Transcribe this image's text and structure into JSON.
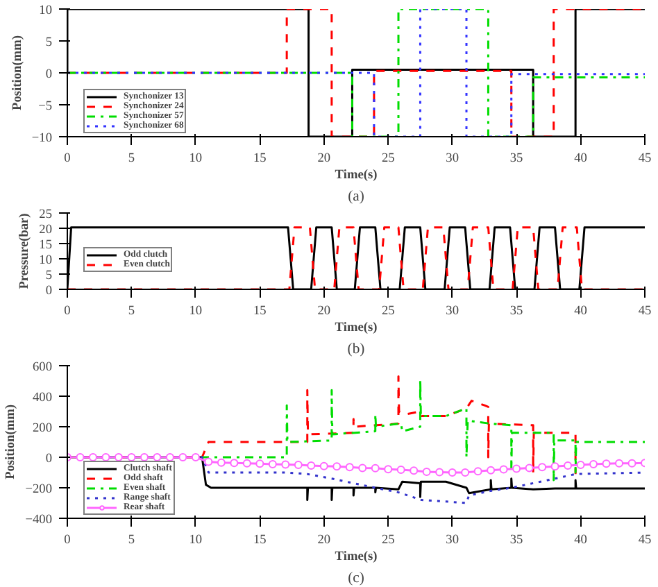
{
  "chart_data": [
    {
      "type": "line",
      "xlabel": "Time(s)",
      "ylabel": "Position(mm)",
      "annotations": [
        "(a)"
      ],
      "xlim": [
        0,
        45
      ],
      "xticks": [
        0,
        5,
        10,
        15,
        20,
        25,
        30,
        35,
        40,
        45
      ],
      "ylim": [
        -10,
        10
      ],
      "yticks": [
        -10,
        -5,
        0,
        5,
        10
      ],
      "grid": false,
      "legend": "bottom left",
      "series": [
        {
          "name": "Synchonizer 13",
          "color": "#000000",
          "line_style": "solid",
          "x": [
            0,
            0,
            18.8,
            18.8,
            22.2,
            22.2,
            36.3,
            36.3,
            39.6,
            39.6,
            45
          ],
          "values": [
            0,
            10,
            10,
            -10,
            -10,
            0.5,
            0.5,
            -10,
            -10,
            10,
            10
          ]
        },
        {
          "name": "Synchonizer 24",
          "color": "#ff0000",
          "line_style": "dashed",
          "x": [
            0,
            17.1,
            17.1,
            20.6,
            20.6,
            23.9,
            23.9,
            34.6,
            34.6,
            37.9,
            37.9,
            45
          ],
          "values": [
            0,
            0,
            10,
            10,
            -10,
            -10,
            0.3,
            0.3,
            -10,
            -10,
            10,
            10
          ]
        },
        {
          "name": "Synchonizer 57",
          "color": "#00dd00",
          "line_style": "dashdot",
          "x": [
            0,
            22.2,
            22.2,
            25.8,
            25.8,
            32.8,
            32.8,
            36.3,
            36.3,
            45
          ],
          "values": [
            0,
            0,
            -10,
            -10,
            10,
            10,
            -10,
            -10,
            -0.7,
            -0.7
          ]
        },
        {
          "name": "Synchonizer 68",
          "color": "#3333ff",
          "line_style": "dotted",
          "x": [
            0,
            23.9,
            23.9,
            27.5,
            27.5,
            31.1,
            31.1,
            34.6,
            34.6,
            45
          ],
          "values": [
            0,
            0,
            -10,
            -10,
            10,
            10,
            -10,
            -10,
            -0.2,
            -0.2
          ]
        }
      ]
    },
    {
      "type": "line",
      "xlabel": "Time(s)",
      "ylabel": "Pressure(bar)",
      "annotations": [
        "(b)"
      ],
      "xlim": [
        0,
        45
      ],
      "xticks": [
        0,
        5,
        10,
        15,
        20,
        25,
        30,
        35,
        40,
        45
      ],
      "ylim": [
        0,
        25
      ],
      "yticks": [
        0,
        5,
        10,
        15,
        20,
        25
      ],
      "grid": false,
      "legend": "bottom left",
      "series": [
        {
          "name": "Odd clutch",
          "color": "#000000",
          "line_style": "solid",
          "x": [
            0,
            0.3,
            17.2,
            17.6,
            19.0,
            19.4,
            20.6,
            21.0,
            22.4,
            22.8,
            24.0,
            24.4,
            25.9,
            26.3,
            27.5,
            27.9,
            29.4,
            29.8,
            31.0,
            31.4,
            32.9,
            33.3,
            34.5,
            34.9,
            36.4,
            36.8,
            38.0,
            38.4,
            39.9,
            40.3,
            45
          ],
          "values": [
            0,
            20.3,
            20.3,
            0,
            0,
            20.3,
            20.3,
            0,
            0,
            20.3,
            20.3,
            0,
            0,
            20.3,
            20.3,
            0,
            0,
            20.3,
            20.3,
            0,
            0,
            20.3,
            20.3,
            0,
            0,
            20.3,
            20.3,
            0,
            0,
            20.3,
            20.3
          ]
        },
        {
          "name": "Even clutch",
          "color": "#ff0000",
          "line_style": "dashed",
          "x": [
            0,
            17.3,
            17.7,
            18.9,
            19.3,
            20.8,
            21.2,
            22.3,
            22.7,
            24.3,
            24.7,
            25.8,
            26.2,
            27.7,
            28.1,
            29.3,
            29.7,
            31.2,
            31.6,
            32.8,
            33.2,
            34.7,
            35.1,
            36.3,
            36.7,
            38.2,
            38.6,
            39.7,
            40.1,
            45
          ],
          "values": [
            0,
            0,
            20.3,
            20.3,
            0,
            0,
            20.3,
            20.3,
            0,
            0,
            20.3,
            20.3,
            0,
            0,
            20.3,
            20.3,
            0,
            0,
            20.3,
            20.3,
            0,
            0,
            20.3,
            20.3,
            0,
            0,
            20.3,
            20.3,
            0,
            0
          ]
        }
      ]
    },
    {
      "type": "line",
      "xlabel": "Time(s)",
      "ylabel": "Position(mm)",
      "annotations": [
        "(c)"
      ],
      "xlim": [
        0,
        45
      ],
      "xticks": [
        0,
        5,
        10,
        15,
        20,
        25,
        30,
        35,
        40,
        45
      ],
      "ylim": [
        -400,
        600
      ],
      "yticks": [
        -400,
        -200,
        0,
        200,
        400,
        600
      ],
      "grid": false,
      "legend": "bottom left",
      "series": [
        {
          "name": "Clutch shaft",
          "color": "#000000",
          "line_style": "solid",
          "x": [
            0,
            10.5,
            10.8,
            11.2,
            18.7,
            18.7,
            18.75,
            20.6,
            20.6,
            20.65,
            22.3,
            22.3,
            22.35,
            24,
            24,
            24.05,
            25.8,
            26.1,
            27.5,
            27.5,
            27.55,
            29.5,
            31.1,
            31.3,
            33,
            33,
            33.05,
            34.6,
            34.6,
            34.65,
            36.3,
            38,
            39.6,
            39.6,
            39.65,
            45
          ],
          "values": [
            0,
            0,
            -180,
            -200,
            -200,
            -280,
            -200,
            -200,
            -280,
            -200,
            -200,
            -250,
            -200,
            -200,
            -230,
            -200,
            -210,
            -160,
            -170,
            -260,
            -160,
            -160,
            -200,
            -235,
            -210,
            -150,
            -210,
            -200,
            -140,
            -200,
            -210,
            -205,
            -205,
            -150,
            -205,
            -205
          ]
        },
        {
          "name": "Odd shaft",
          "color": "#ff0000",
          "line_style": "dashed",
          "x": [
            0,
            10.5,
            11,
            18.7,
            18.7,
            18.75,
            22.3,
            22.3,
            22.35,
            25.8,
            25.8,
            25.85,
            26.3,
            27.5,
            27.6,
            29.5,
            31.1,
            31.5,
            32.5,
            32.8,
            32.8,
            32.85,
            36.3,
            36.3,
            36.35,
            39.6,
            39.6
          ],
          "values": [
            0,
            0,
            100,
            100,
            440,
            150,
            160,
            250,
            200,
            220,
            530,
            300,
            280,
            300,
            270,
            270,
            320,
            370,
            340,
            330,
            0,
            220,
            210,
            -100,
            160,
            160,
            -110
          ]
        },
        {
          "name": "Even shaft",
          "color": "#00dd00",
          "line_style": "dashdot",
          "x": [
            0,
            17.1,
            17.1,
            17.15,
            20.6,
            20.6,
            20.65,
            24,
            24,
            24.05,
            25.8,
            26,
            26.1,
            27.5,
            27.5,
            27.55,
            29.5,
            31.1,
            31.1,
            31.2,
            33,
            34.6,
            34.6,
            34.65,
            37.9,
            37.9,
            37.95,
            39.6,
            39.6,
            39.65,
            45
          ],
          "values": [
            0,
            0,
            340,
            100,
            110,
            440,
            150,
            170,
            280,
            200,
            220,
            220,
            170,
            200,
            510,
            270,
            270,
            320,
            0,
            240,
            220,
            210,
            -80,
            160,
            160,
            -150,
            110,
            110,
            -100,
            100,
            100
          ]
        },
        {
          "name": "Range shaft",
          "color": "#3333cc",
          "line_style": "dotted",
          "x": [
            0,
            10.5,
            11,
            17,
            18.7,
            20.6,
            22.3,
            24,
            25.8,
            27.6,
            29.5,
            31.1,
            31.3,
            33,
            34.6,
            36.3,
            38,
            39.6,
            45
          ],
          "values": [
            0,
            0,
            -100,
            -100,
            -110,
            -140,
            -170,
            -200,
            -230,
            -280,
            -290,
            -300,
            -250,
            -220,
            -200,
            -170,
            -140,
            -110,
            -100
          ]
        },
        {
          "name": "Rear shaft",
          "color": "#ff66ff",
          "line_style": "solid",
          "marker": "circle",
          "x": [
            0,
            1,
            2,
            3,
            4,
            5,
            6,
            7,
            8,
            9,
            10,
            11,
            12,
            13,
            14,
            15,
            16,
            17,
            18,
            19,
            20,
            21,
            22,
            23,
            24,
            25,
            26,
            27,
            28,
            29,
            30,
            31,
            32,
            33,
            34,
            35,
            36,
            37,
            38,
            39,
            40,
            41,
            42,
            43,
            44,
            45
          ],
          "values": [
            0,
            0,
            0,
            0,
            0,
            0,
            0,
            0,
            0,
            0,
            0,
            -30,
            -35,
            -38,
            -40,
            -42,
            -45,
            -48,
            -50,
            -55,
            -58,
            -60,
            -65,
            -70,
            -72,
            -78,
            -82,
            -88,
            -95,
            -98,
            -100,
            -100,
            -92,
            -85,
            -80,
            -75,
            -70,
            -65,
            -60,
            -55,
            -50,
            -45,
            -42,
            -40,
            -40,
            -38
          ]
        }
      ]
    }
  ]
}
